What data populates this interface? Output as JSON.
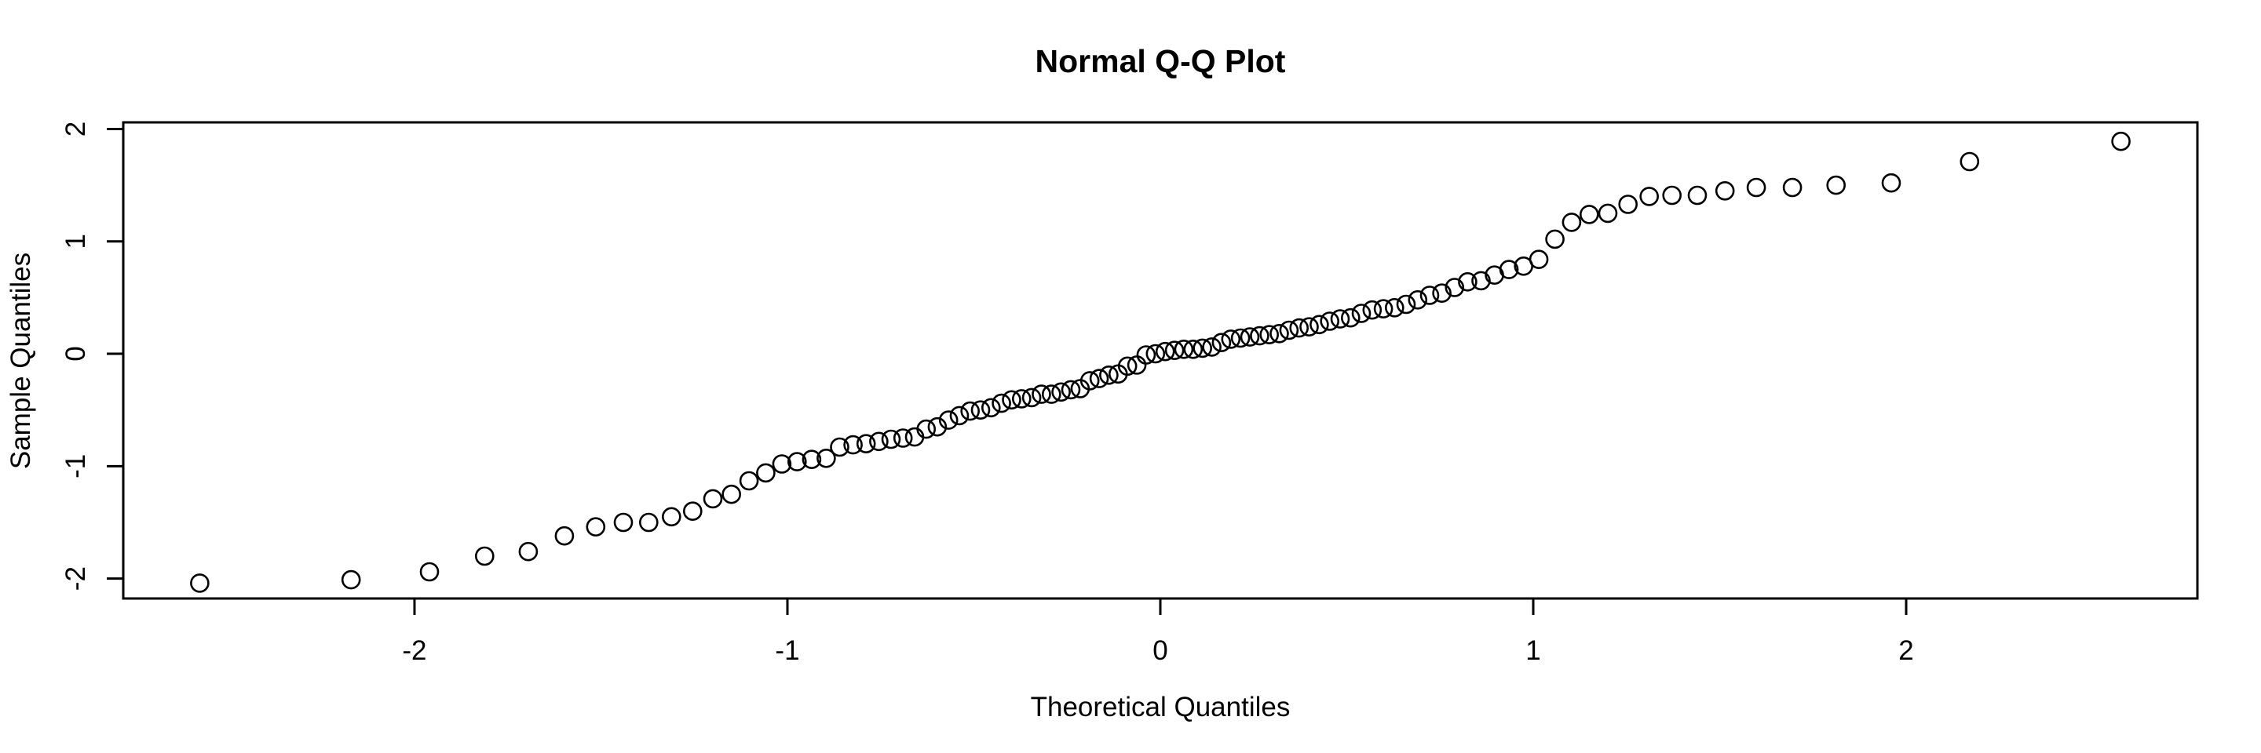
{
  "colors": {
    "background": "#ffffff",
    "foreground": "#000000"
  },
  "chart_data": {
    "type": "scatter",
    "title": "Normal Q-Q Plot",
    "xlabel": "Theoretical Quantiles",
    "ylabel": "Sample Quantiles",
    "grid": false,
    "legend": null,
    "marker": "open-circle",
    "n_points": 100,
    "x_ticks": [
      -2,
      -1,
      0,
      1,
      2
    ],
    "y_ticks": [
      -2,
      -1,
      0,
      1,
      2
    ],
    "xlim": [
      -2.781,
      2.781
    ],
    "ylim": [
      -2.177,
      2.059
    ],
    "x": [
      -2.576,
      -2.17,
      -1.96,
      -1.812,
      -1.695,
      -1.598,
      -1.514,
      -1.44,
      -1.372,
      -1.311,
      -1.254,
      -1.2,
      -1.15,
      -1.103,
      -1.058,
      -1.015,
      -0.974,
      -0.935,
      -0.896,
      -0.86,
      -0.824,
      -0.789,
      -0.755,
      -0.722,
      -0.69,
      -0.659,
      -0.628,
      -0.598,
      -0.568,
      -0.539,
      -0.51,
      -0.482,
      -0.454,
      -0.426,
      -0.399,
      -0.372,
      -0.345,
      -0.319,
      -0.292,
      -0.266,
      -0.24,
      -0.215,
      -0.189,
      -0.164,
      -0.138,
      -0.113,
      -0.088,
      -0.063,
      -0.038,
      -0.013,
      0.013,
      0.038,
      0.063,
      0.088,
      0.113,
      0.138,
      0.164,
      0.189,
      0.215,
      0.24,
      0.266,
      0.292,
      0.319,
      0.345,
      0.372,
      0.399,
      0.426,
      0.454,
      0.482,
      0.51,
      0.539,
      0.568,
      0.598,
      0.628,
      0.659,
      0.69,
      0.722,
      0.755,
      0.789,
      0.824,
      0.86,
      0.896,
      0.935,
      0.974,
      1.015,
      1.058,
      1.103,
      1.15,
      1.2,
      1.254,
      1.311,
      1.372,
      1.44,
      1.514,
      1.598,
      1.695,
      1.812,
      1.96,
      2.17,
      2.576
    ],
    "y": [
      -2.04,
      -2.01,
      -1.94,
      -1.8,
      -1.76,
      -1.62,
      -1.54,
      -1.5,
      -1.5,
      -1.45,
      -1.4,
      -1.29,
      -1.25,
      -1.13,
      -1.06,
      -0.98,
      -0.96,
      -0.94,
      -0.93,
      -0.83,
      -0.81,
      -0.8,
      -0.78,
      -0.76,
      -0.75,
      -0.74,
      -0.67,
      -0.65,
      -0.59,
      -0.55,
      -0.51,
      -0.5,
      -0.48,
      -0.44,
      -0.41,
      -0.4,
      -0.39,
      -0.36,
      -0.36,
      -0.34,
      -0.32,
      -0.31,
      -0.24,
      -0.22,
      -0.19,
      -0.18,
      -0.11,
      -0.1,
      -0.01,
      0.0,
      0.02,
      0.03,
      0.04,
      0.04,
      0.05,
      0.06,
      0.1,
      0.13,
      0.14,
      0.15,
      0.16,
      0.17,
      0.18,
      0.21,
      0.23,
      0.24,
      0.26,
      0.29,
      0.31,
      0.32,
      0.36,
      0.39,
      0.4,
      0.41,
      0.44,
      0.48,
      0.52,
      0.54,
      0.59,
      0.64,
      0.65,
      0.7,
      0.75,
      0.78,
      0.84,
      1.02,
      1.17,
      1.24,
      1.25,
      1.33,
      1.4,
      1.41,
      1.41,
      1.45,
      1.48,
      1.48,
      1.5,
      1.52,
      1.71,
      1.89
    ]
  }
}
